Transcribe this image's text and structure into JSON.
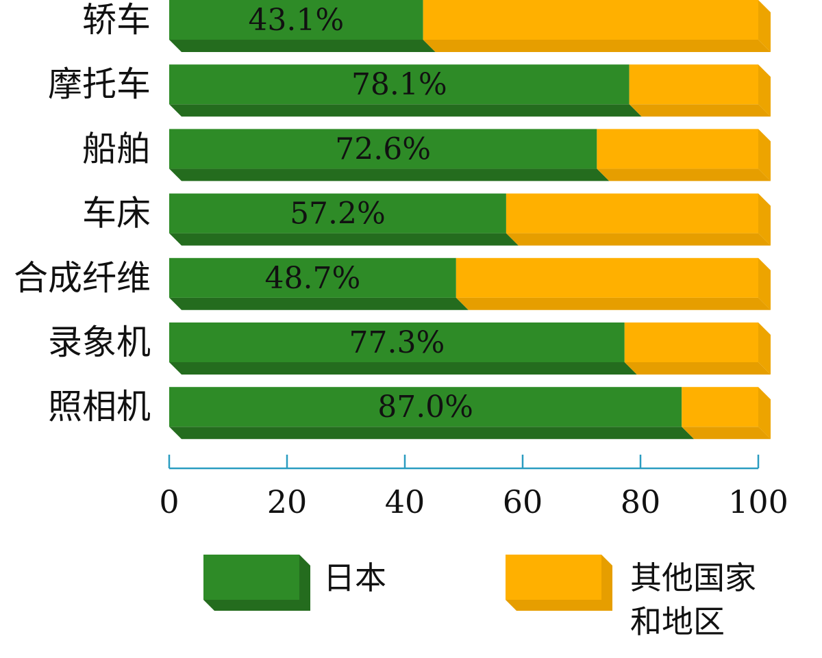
{
  "chart_data": {
    "type": "bar",
    "orientation": "horizontal",
    "stacked": true,
    "categories": [
      "轿车",
      "摩托车",
      "船舶",
      "车床",
      "合成纤维",
      "录象机",
      "照相机"
    ],
    "series": [
      {
        "name": "日本",
        "values": [
          43.1,
          78.1,
          72.6,
          57.2,
          48.7,
          77.3,
          87.0
        ],
        "labels": [
          "43.1%",
          "78.1%",
          "72.6%",
          "57.2%",
          "48.7%",
          "77.3%",
          "87.0%"
        ],
        "color": "#2e8b27"
      },
      {
        "name": "其他国家和地区",
        "name_lines": [
          "其他国家",
          "和地区"
        ],
        "values": [
          56.9,
          21.9,
          27.4,
          42.8,
          51.3,
          22.7,
          13.0
        ],
        "color": "#ffb000"
      }
    ],
    "xlim": [
      0,
      100
    ],
    "x_ticks": [
      "0",
      "20",
      "40",
      "60",
      "80",
      "100"
    ],
    "axis_color": "#2a9cc0",
    "legend_position": "bottom",
    "grid": false
  }
}
